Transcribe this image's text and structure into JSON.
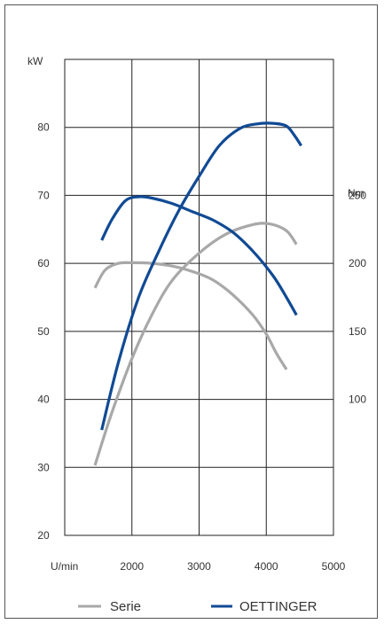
{
  "chart_data": {
    "type": "line",
    "xlabel": "U/min",
    "ylabel_left": "kW",
    "ylabel_right": "Nm",
    "xlim": [
      1000,
      5000
    ],
    "x_ticks": [
      "2000",
      "3000",
      "4000",
      "5000"
    ],
    "ylim_left": [
      20,
      90
    ],
    "y_ticks_left": [
      "20",
      "30",
      "40",
      "50",
      "60",
      "70",
      "80"
    ],
    "ylim_right": [
      0,
      350
    ],
    "y_ticks_right": [
      "100",
      "150",
      "200",
      "250"
    ],
    "grid": true,
    "legend_position": "bottom",
    "series": [
      {
        "name": "Serie",
        "quantity": "power",
        "axis": "left",
        "color": "#a8a8a8",
        "points": [
          [
            1450,
            30.3
          ],
          [
            1700,
            38
          ],
          [
            2000,
            46
          ],
          [
            2300,
            52.5
          ],
          [
            2600,
            57.5
          ],
          [
            3000,
            61.5
          ],
          [
            3400,
            64.3
          ],
          [
            3800,
            65.7
          ],
          [
            4050,
            65.8
          ],
          [
            4300,
            64.8
          ],
          [
            4450,
            62.8
          ]
        ]
      },
      {
        "name": "Serie",
        "quantity": "torque",
        "axis": "right",
        "color": "#a8a8a8",
        "points": [
          [
            1450,
            182
          ],
          [
            1600,
            195
          ],
          [
            1800,
            200
          ],
          [
            2000,
            200.5
          ],
          [
            2300,
            200
          ],
          [
            2600,
            198
          ],
          [
            2900,
            194
          ],
          [
            3200,
            188
          ],
          [
            3500,
            177
          ],
          [
            3800,
            162
          ],
          [
            4000,
            148
          ],
          [
            4150,
            134
          ],
          [
            4300,
            122
          ]
        ]
      },
      {
        "name": "OETTINGER",
        "quantity": "power",
        "axis": "left",
        "color": "#114a94",
        "points": [
          [
            1550,
            35.5
          ],
          [
            1800,
            45.5
          ],
          [
            2100,
            55
          ],
          [
            2400,
            61.8
          ],
          [
            2700,
            67.8
          ],
          [
            3000,
            72.8
          ],
          [
            3300,
            77.3
          ],
          [
            3600,
            79.8
          ],
          [
            3850,
            80.5
          ],
          [
            4100,
            80.6
          ],
          [
            4300,
            80.2
          ],
          [
            4420,
            78.8
          ],
          [
            4520,
            77.3
          ]
        ]
      },
      {
        "name": "OETTINGER",
        "quantity": "torque",
        "axis": "right",
        "color": "#114a94",
        "points": [
          [
            1550,
            217
          ],
          [
            1700,
            232
          ],
          [
            1900,
            246
          ],
          [
            2100,
            249
          ],
          [
            2300,
            248
          ],
          [
            2600,
            244
          ],
          [
            2900,
            238
          ],
          [
            3200,
            232
          ],
          [
            3500,
            223
          ],
          [
            3800,
            209
          ],
          [
            4100,
            191
          ],
          [
            4300,
            175
          ],
          [
            4450,
            162
          ]
        ]
      }
    ]
  },
  "legend": [
    {
      "label": "Serie",
      "color": "#a8a8a8"
    },
    {
      "label": "OETTINGER",
      "color": "#114a94"
    }
  ]
}
